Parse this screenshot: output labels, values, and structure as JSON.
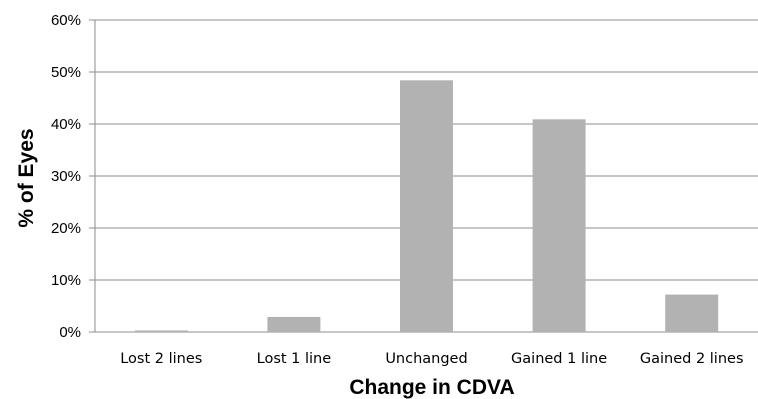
{
  "chart_data": {
    "type": "bar",
    "categories": [
      "Lost 2 lines",
      "Lost 1 line",
      "Unchanged",
      "Gained 1 line",
      "Gained 2 lines"
    ],
    "values": [
      0.3,
      2.9,
      48.4,
      40.9,
      7.2
    ],
    "xlabel": "Change in CDVA",
    "ylabel": "% of Eyes",
    "ylim": [
      0,
      60
    ],
    "yticks": [
      "0%",
      "10%",
      "20%",
      "30%",
      "40%",
      "50%",
      "60%"
    ],
    "grid": true,
    "bar_color": "#b2b2b2",
    "grid_color": "#8c8c8c"
  }
}
